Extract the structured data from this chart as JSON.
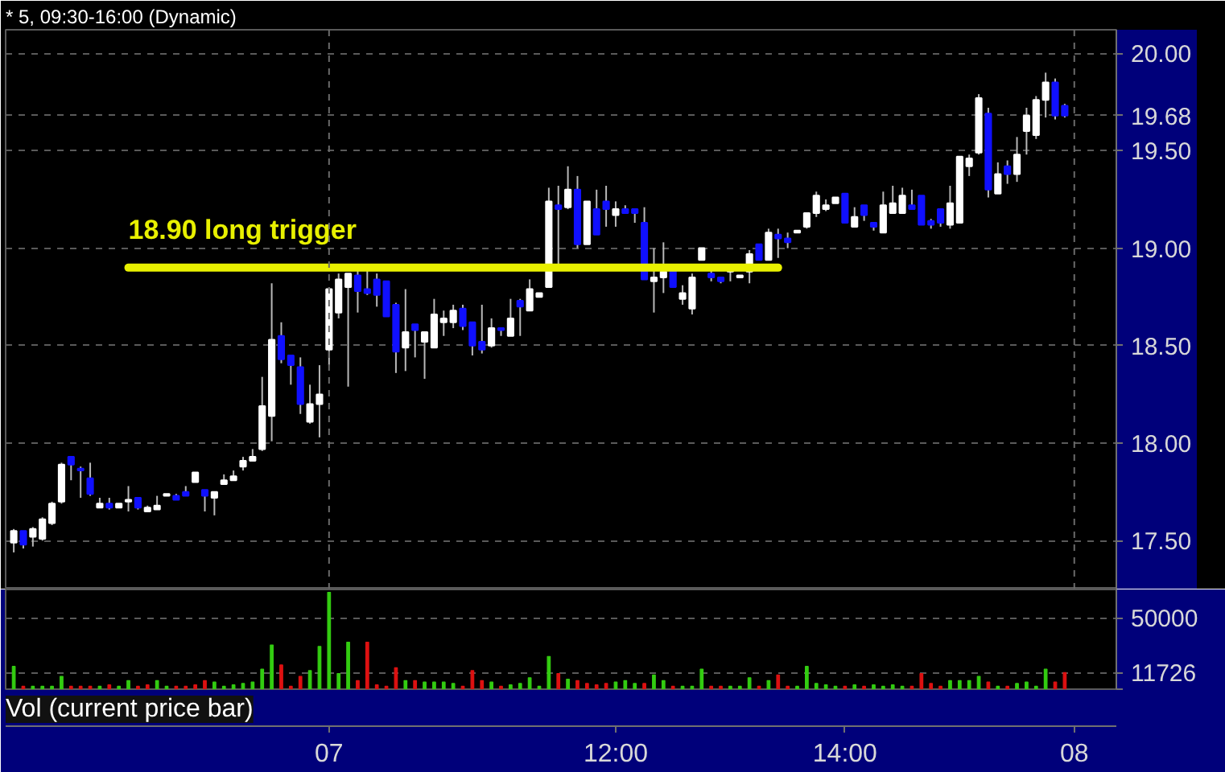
{
  "chart_data": [
    {
      "type": "candlestick",
      "title": "* 5, 09:30-16:00 (Dynamic)",
      "categories": [
        null,
        null,
        null,
        null,
        null,
        null,
        null,
        null,
        null,
        null,
        null,
        null,
        null,
        null,
        null,
        null,
        null,
        null,
        null,
        null,
        null,
        null,
        null,
        null,
        null,
        null,
        null,
        null,
        null,
        null,
        null,
        null,
        null,
        null,
        null,
        null,
        null,
        null,
        null,
        null,
        null,
        null,
        null,
        null,
        null,
        null,
        null,
        null,
        null,
        null,
        null,
        null,
        null,
        null,
        null,
        null,
        null,
        null,
        null,
        null,
        null,
        null,
        null,
        null,
        null,
        null,
        null,
        null,
        null,
        null,
        null,
        null,
        null,
        null,
        null,
        null,
        null,
        null,
        null,
        null,
        null,
        null,
        null,
        null,
        null,
        null,
        null,
        null,
        null,
        null,
        null,
        null,
        null,
        null,
        null,
        null,
        null,
        null,
        null,
        null,
        null,
        null,
        null,
        null,
        null,
        null,
        null,
        null,
        null,
        null,
        null,
        null
      ],
      "ohlc": [
        [
          17.49,
          17.56,
          17.44,
          17.55
        ],
        [
          17.55,
          17.55,
          17.46,
          17.48
        ],
        [
          17.52,
          17.57,
          17.47,
          17.56
        ],
        [
          17.51,
          17.62,
          17.5,
          17.61
        ],
        [
          17.59,
          17.7,
          17.58,
          17.69
        ],
        [
          17.7,
          17.9,
          17.69,
          17.89
        ],
        [
          17.93,
          17.93,
          17.81,
          17.89
        ],
        [
          17.87,
          17.88,
          17.72,
          17.86
        ],
        [
          17.82,
          17.9,
          17.73,
          17.74
        ],
        [
          17.67,
          17.72,
          17.67,
          17.69
        ],
        [
          17.69,
          17.72,
          17.66,
          17.67
        ],
        [
          17.67,
          17.69,
          17.67,
          17.69
        ],
        [
          17.7,
          17.78,
          17.65,
          17.71
        ],
        [
          17.72,
          17.72,
          17.66,
          17.67
        ],
        [
          17.65,
          17.68,
          17.65,
          17.67
        ],
        [
          17.66,
          17.73,
          17.66,
          17.68
        ],
        [
          17.73,
          17.74,
          17.73,
          17.74
        ],
        [
          17.73,
          17.74,
          17.71,
          17.71
        ],
        [
          17.75,
          17.78,
          17.73,
          17.73
        ],
        [
          17.8,
          17.85,
          17.8,
          17.85
        ],
        [
          17.76,
          17.76,
          17.65,
          17.73
        ],
        [
          17.72,
          17.75,
          17.63,
          17.75
        ],
        [
          17.79,
          17.84,
          17.79,
          17.81
        ],
        [
          17.81,
          17.86,
          17.81,
          17.83
        ],
        [
          17.88,
          17.93,
          17.86,
          17.91
        ],
        [
          17.91,
          17.97,
          17.91,
          17.93
        ],
        [
          17.97,
          18.34,
          17.96,
          18.19
        ],
        [
          18.14,
          18.82,
          18.01,
          18.53
        ],
        [
          18.55,
          18.62,
          18.41,
          18.43
        ],
        [
          18.45,
          18.45,
          18.3,
          18.4
        ],
        [
          18.39,
          18.44,
          18.15,
          18.2
        ],
        [
          18.11,
          18.3,
          18.1,
          18.2
        ],
        [
          18.2,
          18.4,
          18.03,
          18.25
        ],
        [
          18.48,
          18.8,
          18.4,
          18.79
        ],
        [
          18.67,
          18.87,
          18.64,
          18.84
        ],
        [
          18.8,
          18.87,
          18.29,
          18.87
        ],
        [
          18.86,
          18.9,
          18.67,
          18.78
        ],
        [
          18.79,
          18.9,
          18.76,
          18.77
        ],
        [
          18.84,
          18.87,
          18.7,
          18.76
        ],
        [
          18.83,
          18.83,
          18.65,
          18.65
        ],
        [
          18.71,
          18.72,
          18.36,
          18.47
        ],
        [
          18.49,
          18.79,
          18.37,
          18.57
        ],
        [
          18.61,
          18.61,
          18.44,
          18.58
        ],
        [
          18.52,
          18.57,
          18.33,
          18.57
        ],
        [
          18.49,
          18.74,
          18.49,
          18.66
        ],
        [
          18.62,
          18.68,
          18.55,
          18.64
        ],
        [
          18.62,
          18.71,
          18.59,
          18.68
        ],
        [
          18.69,
          18.71,
          18.58,
          18.6
        ],
        [
          18.62,
          18.62,
          18.45,
          18.5
        ],
        [
          18.52,
          18.71,
          18.46,
          18.48
        ],
        [
          18.5,
          18.64,
          18.49,
          18.59
        ],
        [
          18.59,
          18.59,
          18.55,
          18.58
        ],
        [
          18.55,
          18.74,
          18.55,
          18.64
        ],
        [
          18.73,
          18.74,
          18.55,
          18.7
        ],
        [
          18.68,
          18.84,
          18.68,
          18.79
        ],
        [
          18.75,
          18.77,
          18.75,
          18.77
        ],
        [
          18.8,
          19.31,
          18.8,
          19.24
        ],
        [
          19.22,
          19.32,
          18.91,
          19.2
        ],
        [
          19.21,
          19.42,
          19.2,
          19.3
        ],
        [
          19.3,
          19.37,
          19.0,
          19.02
        ],
        [
          19.02,
          19.24,
          19.02,
          19.24
        ],
        [
          19.2,
          19.3,
          19.07,
          19.07
        ],
        [
          19.24,
          19.32,
          19.11,
          19.2
        ],
        [
          19.17,
          19.24,
          19.11,
          19.2
        ],
        [
          19.2,
          19.22,
          19.18,
          19.18
        ],
        [
          19.2,
          19.2,
          19.13,
          19.18
        ],
        [
          19.13,
          19.21,
          18.84,
          18.84
        ],
        [
          18.83,
          19.0,
          18.67,
          18.85
        ],
        [
          18.85,
          19.03,
          18.77,
          18.88
        ],
        [
          18.9,
          18.9,
          18.8,
          18.8
        ],
        [
          18.74,
          18.81,
          18.71,
          18.77
        ],
        [
          18.69,
          18.87,
          18.66,
          18.85
        ],
        [
          18.94,
          19.0,
          18.94,
          19.0
        ],
        [
          18.87,
          18.9,
          18.83,
          18.85
        ],
        [
          18.85,
          18.85,
          18.82,
          18.83
        ],
        [
          18.88,
          18.9,
          18.83,
          18.9
        ],
        [
          18.85,
          18.86,
          18.85,
          18.86
        ],
        [
          18.88,
          18.99,
          18.82,
          18.97
        ],
        [
          19.02,
          19.02,
          18.94,
          18.94
        ],
        [
          18.94,
          19.1,
          18.94,
          19.08
        ],
        [
          19.07,
          19.1,
          18.95,
          19.05
        ],
        [
          19.05,
          19.08,
          19.0,
          19.03
        ],
        [
          19.08,
          19.09,
          19.08,
          19.09
        ],
        [
          19.11,
          19.18,
          19.1,
          19.18
        ],
        [
          19.18,
          19.29,
          19.16,
          19.27
        ],
        [
          19.2,
          19.25,
          19.19,
          19.22
        ],
        [
          19.23,
          19.26,
          19.23,
          19.26
        ],
        [
          19.28,
          19.28,
          19.13,
          19.13
        ],
        [
          19.11,
          19.21,
          19.11,
          19.16
        ],
        [
          19.22,
          19.22,
          19.14,
          19.17
        ],
        [
          19.13,
          19.13,
          19.09,
          19.11
        ],
        [
          19.08,
          19.29,
          19.08,
          19.22
        ],
        [
          19.18,
          19.32,
          19.18,
          19.23
        ],
        [
          19.18,
          19.31,
          19.18,
          19.27
        ],
        [
          19.22,
          19.3,
          19.2,
          19.2
        ],
        [
          19.27,
          19.27,
          19.12,
          19.12
        ],
        [
          19.14,
          19.15,
          19.1,
          19.12
        ],
        [
          19.2,
          19.2,
          19.11,
          19.13
        ],
        [
          19.12,
          19.32,
          19.1,
          19.23
        ],
        [
          19.13,
          19.47,
          19.13,
          19.47
        ],
        [
          19.42,
          19.48,
          19.37,
          19.46
        ],
        [
          19.49,
          19.79,
          19.48,
          19.77
        ],
        [
          19.69,
          19.72,
          19.26,
          19.3
        ],
        [
          19.28,
          19.44,
          19.28,
          19.38
        ],
        [
          19.42,
          19.45,
          19.33,
          19.38
        ],
        [
          19.38,
          19.57,
          19.34,
          19.48
        ],
        [
          19.6,
          19.72,
          19.48,
          19.68
        ],
        [
          19.58,
          19.78,
          19.56,
          19.76
        ],
        [
          19.76,
          19.9,
          19.67,
          19.85
        ],
        [
          19.85,
          19.87,
          19.66,
          19.68
        ],
        [
          19.73,
          19.74,
          19.67,
          19.68
        ],
        null
      ],
      "colors": [
        "#ffffff",
        "#1010ff",
        "#ffffff",
        "#ffffff",
        "#ffffff",
        "#ffffff",
        "#1010ff",
        "#1010ff",
        "#1010ff",
        "#ffffff",
        "#1010ff",
        "#ffffff",
        "#ffffff",
        "#1010ff",
        "#ffffff",
        "#ffffff",
        "#ffffff",
        "#1010ff",
        "#1010ff",
        "#ffffff",
        "#1010ff",
        "#ffffff",
        "#ffffff",
        "#ffffff",
        "#ffffff",
        "#ffffff",
        "#ffffff",
        "#ffffff",
        "#1010ff",
        "#1010ff",
        "#1010ff",
        "#ffffff",
        "#ffffff",
        "#ffffff",
        "#ffffff",
        "#ffffff",
        "#1010ff",
        "#1010ff",
        "#1010ff",
        "#1010ff",
        "#1010ff",
        "#ffffff",
        "#1010ff",
        "#ffffff",
        "#ffffff",
        "#ffffff",
        "#ffffff",
        "#1010ff",
        "#1010ff",
        "#1010ff",
        "#ffffff",
        "#1010ff",
        "#ffffff",
        "#1010ff",
        "#ffffff",
        "#ffffff",
        "#ffffff",
        "#1010ff",
        "#ffffff",
        "#1010ff",
        "#ffffff",
        "#1010ff",
        "#1010ff",
        "#ffffff",
        "#1010ff",
        "#1010ff",
        "#1010ff",
        "#ffffff",
        "#ffffff",
        "#1010ff",
        "#ffffff",
        "#ffffff",
        "#ffffff",
        "#1010ff",
        "#1010ff",
        "#ffffff",
        "#ffffff",
        "#ffffff",
        "#1010ff",
        "#ffffff",
        "#1010ff",
        "#1010ff",
        "#ffffff",
        "#ffffff",
        "#ffffff",
        "#ffffff",
        "#ffffff",
        "#1010ff",
        "#ffffff",
        "#1010ff",
        "#1010ff",
        "#ffffff",
        "#ffffff",
        "#ffffff",
        "#1010ff",
        "#1010ff",
        "#1010ff",
        "#1010ff",
        "#ffffff",
        "#ffffff",
        "#ffffff",
        "#ffffff",
        "#1010ff",
        "#ffffff",
        "#1010ff",
        "#ffffff",
        "#ffffff",
        "#ffffff",
        "#ffffff",
        "#1010ff",
        "#1010ff",
        null
      ],
      "series": [
        {
          "type": "line",
          "name": "18.90 long trigger",
          "color": "#e8f000",
          "values": [
            null,
            null,
            null,
            null,
            null,
            null,
            null,
            null,
            null,
            null,
            null,
            null,
            18.9,
            18.9,
            18.9,
            18.9,
            18.9,
            18.9,
            18.9,
            18.9,
            18.9,
            18.9,
            18.9,
            18.9,
            18.9,
            18.9,
            18.9,
            18.9,
            18.9,
            18.9,
            18.9,
            18.9,
            18.9,
            18.9,
            18.9,
            18.9,
            18.9,
            18.9,
            18.9,
            18.9,
            18.9,
            18.9,
            18.9,
            18.9,
            18.9,
            18.9,
            18.9,
            18.9,
            18.9,
            18.9,
            18.9,
            18.9,
            18.9,
            18.9,
            18.9,
            18.9,
            18.9,
            18.9,
            18.9,
            18.9,
            18.9,
            18.9,
            18.9,
            18.9,
            18.9,
            18.9,
            18.9,
            18.9,
            18.9,
            18.9,
            18.9,
            18.9,
            18.9,
            18.9,
            18.9,
            18.9,
            18.9,
            18.9,
            18.9,
            18.9,
            18.9,
            null,
            null,
            null,
            null,
            null,
            null,
            null,
            null,
            null,
            null,
            null,
            null,
            null,
            null,
            null,
            null,
            null,
            null,
            null,
            null,
            null,
            null,
            null,
            null,
            null,
            null,
            null,
            null,
            null,
            null,
            null
          ]
        }
      ],
      "ylim": [
        17.25,
        20.12
      ],
      "yticks": [
        {
          "value": 17.5,
          "label": "17.50"
        },
        {
          "value": 18,
          "label": "18.00"
        },
        {
          "value": 18.5,
          "label": "18.50"
        },
        {
          "value": 19,
          "label": "19.00"
        },
        {
          "value": 19.5,
          "label": "19.50"
        },
        {
          "value": 19.68,
          "label": "19.68"
        },
        {
          "value": 20,
          "label": "20.00"
        }
      ],
      "grid": "y",
      "tick_labels": "y",
      "ref_lines": [
        {
          "axis": "x",
          "value": "07"
        },
        {
          "axis": "x",
          "value": "08"
        }
      ]
    },
    {
      "type": "bar",
      "title": "Vol (current price bar)",
      "categories": [
        null,
        null,
        null,
        null,
        null,
        null,
        null,
        null,
        null,
        null,
        null,
        null,
        null,
        null,
        null,
        null,
        null,
        null,
        null,
        null,
        null,
        null,
        null,
        null,
        null,
        null,
        null,
        null,
        null,
        null,
        null,
        null,
        null,
        "07",
        null,
        null,
        null,
        null,
        null,
        null,
        null,
        null,
        null,
        null,
        null,
        null,
        null,
        null,
        null,
        null,
        null,
        null,
        null,
        null,
        null,
        null,
        null,
        null,
        null,
        null,
        null,
        null,
        null,
        "12:00",
        null,
        null,
        null,
        null,
        null,
        null,
        null,
        null,
        null,
        null,
        null,
        null,
        null,
        null,
        null,
        null,
        null,
        null,
        null,
        null,
        null,
        null,
        null,
        "14:00",
        null,
        null,
        null,
        null,
        null,
        null,
        null,
        null,
        null,
        null,
        null,
        null,
        null,
        null,
        null,
        null,
        null,
        null,
        null,
        null,
        null,
        null,
        null,
        "08"
      ],
      "values": [
        16000,
        2000,
        2000,
        2000,
        2000,
        9000,
        2000,
        2000,
        2000,
        2000,
        3000,
        2000,
        6000,
        2000,
        3000,
        6000,
        2000,
        2000,
        2000,
        3000,
        6000,
        5000,
        2000,
        3000,
        4000,
        5000,
        14000,
        31000,
        17000,
        2000,
        9000,
        13000,
        30000,
        68000,
        11000,
        33000,
        6000,
        33000,
        3000,
        2000,
        15000,
        6000,
        6000,
        5000,
        5000,
        5000,
        4000,
        2000,
        13000,
        6000,
        5000,
        2000,
        3000,
        4000,
        8000,
        2000,
        23000,
        11000,
        7000,
        6000,
        4000,
        3000,
        4000,
        5000,
        6000,
        4000,
        4000,
        10000,
        6000,
        2000,
        2000,
        2000,
        14000,
        2000,
        2000,
        2000,
        2000,
        8000,
        2000,
        6000,
        10000,
        2000,
        2000,
        16000,
        4000,
        3000,
        2000,
        2000,
        3000,
        2000,
        3000,
        2000,
        3000,
        2000,
        2000,
        11000,
        4000,
        2000,
        6000,
        6000,
        6000,
        9000,
        5000,
        2000,
        2000,
        4000,
        5000,
        2000,
        14000,
        5000,
        11726,
        null
      ],
      "colors": [
        "#33cc11",
        "#dd1111",
        "#33cc11",
        "#33cc11",
        "#33cc11",
        "#33cc11",
        "#dd1111",
        "#dd1111",
        "#dd1111",
        "#33cc11",
        "#dd1111",
        "#33cc11",
        "#33cc11",
        "#dd1111",
        "#dd1111",
        "#33cc11",
        "#33cc11",
        "#dd1111",
        "#dd1111",
        "#dd1111",
        "#dd1111",
        "#33cc11",
        "#33cc11",
        "#33cc11",
        "#33cc11",
        "#33cc11",
        "#33cc11",
        "#33cc11",
        "#dd1111",
        "#dd1111",
        "#dd1111",
        "#33cc11",
        "#33cc11",
        "#33cc11",
        "#33cc11",
        "#33cc11",
        "#dd1111",
        "#dd1111",
        "#dd1111",
        "#dd1111",
        "#dd1111",
        "#33cc11",
        "#dd1111",
        "#33cc11",
        "#33cc11",
        "#33cc11",
        "#33cc11",
        "#dd1111",
        "#dd1111",
        "#dd1111",
        "#33cc11",
        "#dd1111",
        "#33cc11",
        "#33cc11",
        "#33cc11",
        "#33cc11",
        "#33cc11",
        "#dd1111",
        "#33cc11",
        "#dd1111",
        "#dd1111",
        "#dd1111",
        "#dd1111",
        "#33cc11",
        "#33cc11",
        "#33cc11",
        "#dd1111",
        "#33cc11",
        "#33cc11",
        "#dd1111",
        "#33cc11",
        "#33cc11",
        "#33cc11",
        "#dd1111",
        "#dd1111",
        "#33cc11",
        "#33cc11",
        "#33cc11",
        "#dd1111",
        "#33cc11",
        "#dd1111",
        "#dd1111",
        "#33cc11",
        "#33cc11",
        "#33cc11",
        "#33cc11",
        "#33cc11",
        "#dd1111",
        "#33cc11",
        "#dd1111",
        "#33cc11",
        "#33cc11",
        "#33cc11",
        "#33cc11",
        "#dd1111",
        "#dd1111",
        "#dd1111",
        "#dd1111",
        "#33cc11",
        "#33cc11",
        "#33cc11",
        "#33cc11",
        "#dd1111",
        "#33cc11",
        "#dd1111",
        "#33cc11",
        "#33cc11",
        "#33cc11",
        "#33cc11",
        "#dd1111",
        "#dd1111",
        null
      ],
      "ylim": [
        0,
        70000
      ],
      "yticks": [
        {
          "value": 0,
          "label": null
        },
        11726,
        50000
      ],
      "grid": "y"
    }
  ]
}
